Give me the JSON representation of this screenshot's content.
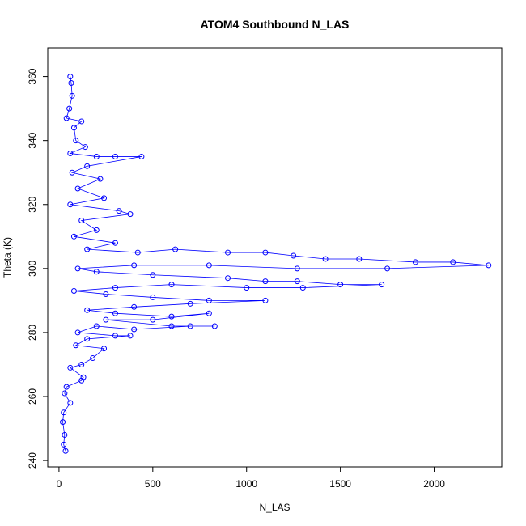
{
  "chart_data": {
    "type": "scatter",
    "title": "ATOM4 Southbound N_LAS",
    "xlabel": "N_LAS",
    "ylabel": "Theta (K)",
    "xlim": [
      -60,
      2360
    ],
    "ylim": [
      238,
      369
    ],
    "x_ticks": [
      0,
      500,
      1000,
      1500,
      2000
    ],
    "y_ticks": [
      240,
      260,
      280,
      300,
      320,
      340,
      360
    ],
    "x_tick_labels": [
      "0",
      "500",
      "1000",
      "1500",
      "2000"
    ],
    "y_tick_labels": [
      "240",
      "260",
      "280",
      "300",
      "320",
      "340",
      "360"
    ],
    "grid": false,
    "legend": "none",
    "marker": "open-circle",
    "connected": true,
    "series": [
      {
        "color": "#0000ff",
        "points": [
          [
            60,
            360
          ],
          [
            65,
            358
          ],
          [
            70,
            354
          ],
          [
            55,
            350
          ],
          [
            40,
            347
          ],
          [
            120,
            346
          ],
          [
            80,
            344
          ],
          [
            90,
            340
          ],
          [
            140,
            338
          ],
          [
            60,
            336
          ],
          [
            200,
            335
          ],
          [
            300,
            335
          ],
          [
            440,
            335
          ],
          [
            150,
            332
          ],
          [
            70,
            330
          ],
          [
            220,
            328
          ],
          [
            100,
            325
          ],
          [
            240,
            322
          ],
          [
            60,
            320
          ],
          [
            320,
            318
          ],
          [
            380,
            317
          ],
          [
            120,
            315
          ],
          [
            200,
            312
          ],
          [
            80,
            310
          ],
          [
            300,
            308
          ],
          [
            150,
            306
          ],
          [
            420,
            305
          ],
          [
            620,
            306
          ],
          [
            900,
            305
          ],
          [
            1100,
            305
          ],
          [
            1250,
            304
          ],
          [
            1420,
            303
          ],
          [
            1600,
            303
          ],
          [
            1900,
            302
          ],
          [
            2100,
            302
          ],
          [
            2290,
            301
          ],
          [
            1750,
            300
          ],
          [
            1270,
            300
          ],
          [
            800,
            301
          ],
          [
            400,
            301
          ],
          [
            100,
            300
          ],
          [
            200,
            299
          ],
          [
            500,
            298
          ],
          [
            900,
            297
          ],
          [
            1100,
            296
          ],
          [
            1270,
            296
          ],
          [
            1500,
            295
          ],
          [
            1720,
            295
          ],
          [
            1300,
            294
          ],
          [
            1000,
            294
          ],
          [
            600,
            295
          ],
          [
            300,
            294
          ],
          [
            80,
            293
          ],
          [
            250,
            292
          ],
          [
            500,
            291
          ],
          [
            800,
            290
          ],
          [
            1100,
            290
          ],
          [
            700,
            289
          ],
          [
            400,
            288
          ],
          [
            150,
            287
          ],
          [
            300,
            286
          ],
          [
            600,
            285
          ],
          [
            800,
            286
          ],
          [
            500,
            284
          ],
          [
            250,
            284
          ],
          [
            600,
            282
          ],
          [
            830,
            282
          ],
          [
            700,
            282
          ],
          [
            400,
            281
          ],
          [
            200,
            282
          ],
          [
            100,
            280
          ],
          [
            300,
            279
          ],
          [
            380,
            279
          ],
          [
            150,
            278
          ],
          [
            90,
            276
          ],
          [
            240,
            275
          ],
          [
            180,
            272
          ],
          [
            120,
            270
          ],
          [
            60,
            269
          ],
          [
            130,
            266
          ],
          [
            120,
            265
          ],
          [
            40,
            263
          ],
          [
            30,
            261
          ],
          [
            60,
            258
          ],
          [
            25,
            255
          ],
          [
            20,
            252
          ],
          [
            30,
            248
          ],
          [
            25,
            245
          ],
          [
            35,
            243
          ]
        ]
      }
    ]
  }
}
